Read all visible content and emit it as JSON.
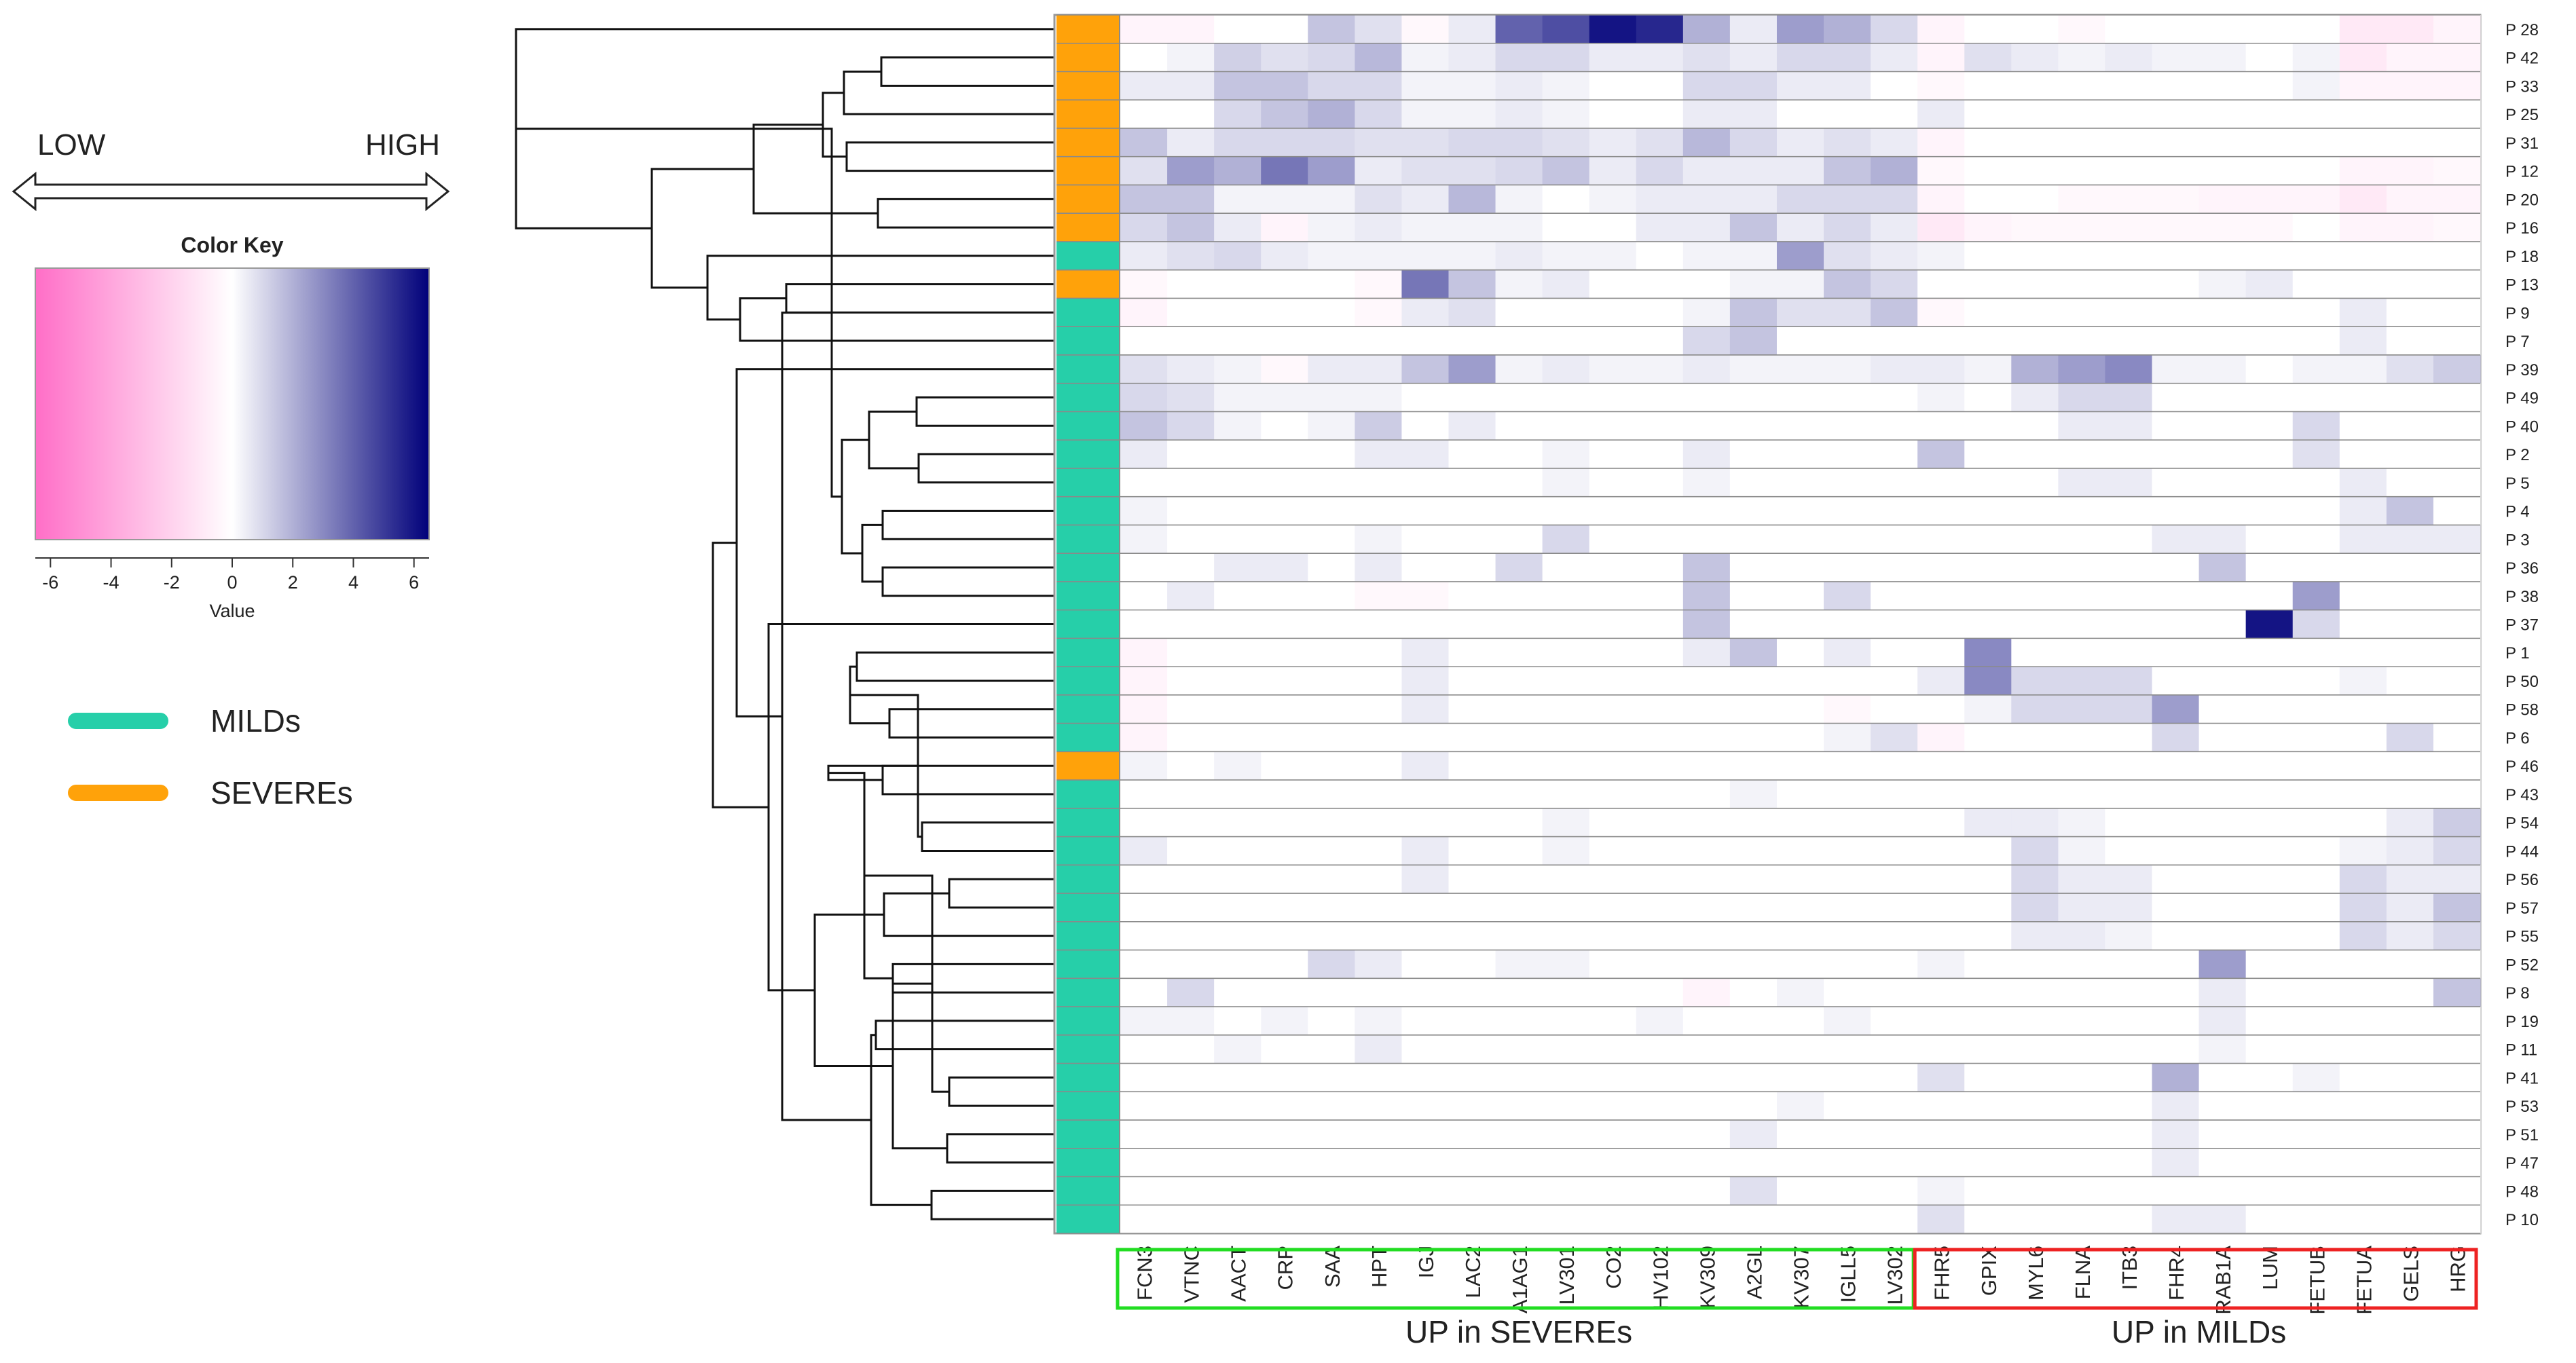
{
  "chart_data": {
    "type": "heatmap",
    "direction_labels": {
      "low": "LOW",
      "high": "HIGH"
    },
    "color_key": {
      "title": "Color Key",
      "xlabel": "Value",
      "range": [
        -6.5,
        6.5
      ],
      "ticks": [
        "-6",
        "-4",
        "-2",
        "0",
        "2",
        "4",
        "6"
      ],
      "tick_values": [
        -6,
        -4,
        -2,
        0,
        2,
        4,
        6
      ],
      "colors": {
        "low": "#ff6ec7",
        "mid": "#ffffff",
        "high": "#00007a"
      }
    },
    "legend": [
      {
        "label": "MILDs",
        "color": "#26cfa9"
      },
      {
        "label": "SEVEREs",
        "color": "#ffa20a"
      }
    ],
    "rows": [
      "P 28",
      "P 42",
      "P 33",
      "P 25",
      "P 31",
      "P 12",
      "P 20",
      "P 16",
      "P 18",
      "P 13",
      "P 9",
      "P 7",
      "P 39",
      "P 49",
      "P 40",
      "P 2",
      "P 5",
      "P 4",
      "P 3",
      "P 36",
      "P 38",
      "P 37",
      "P 1",
      "P 50",
      "P 58",
      "P 6",
      "P 46",
      "P 43",
      "P 54",
      "P 44",
      "P 56",
      "P 57",
      "P 55",
      "P 52",
      "P 8",
      "P 19",
      "P 11",
      "P 41",
      "P 53",
      "P 51",
      "P 47",
      "P 48",
      "P 10"
    ],
    "row_groups": [
      "SEVEREs",
      "SEVEREs",
      "SEVEREs",
      "SEVEREs",
      "SEVEREs",
      "SEVEREs",
      "SEVEREs",
      "SEVEREs",
      "MILDs",
      "SEVEREs",
      "MILDs",
      "MILDs",
      "MILDs",
      "MILDs",
      "MILDs",
      "MILDs",
      "MILDs",
      "MILDs",
      "MILDs",
      "MILDs",
      "MILDs",
      "MILDs",
      "MILDs",
      "MILDs",
      "MILDs",
      "MILDs",
      "SEVEREs",
      "MILDs",
      "MILDs",
      "MILDs",
      "MILDs",
      "MILDs",
      "MILDs",
      "MILDs",
      "MILDs",
      "MILDs",
      "MILDs",
      "MILDs",
      "MILDs",
      "MILDs",
      "MILDs",
      "MILDs",
      "MILDs"
    ],
    "columns": [
      "FCN3",
      "VTNC",
      "AACT",
      "CRP",
      "SAA",
      "HPT",
      "IGJ",
      "LAC2",
      "A1AG1",
      "LV301",
      "CO2",
      "HV102",
      "KV309",
      "A2GL",
      "KV307",
      "IGLL5",
      "LV302",
      "FHR5",
      "GPIX",
      "MYL6",
      "FLNA",
      "ITB3",
      "FHR4",
      "RAB1A",
      "LUM",
      "FETUB",
      "FETUA",
      "GELS",
      "HRG"
    ],
    "column_groups": [
      {
        "label": "UP in SEVEREs",
        "color": "#22dd22",
        "columns": 17
      },
      {
        "label": "UP in MILDs",
        "color": "#ee2222",
        "columns": 12
      }
    ],
    "values": [
      [
        -0.5,
        -0.5,
        0,
        0,
        1.5,
        0.8,
        -0.3,
        0.5,
        4,
        4.5,
        6,
        5.5,
        2,
        0.5,
        2.5,
        2,
        1,
        -0.5,
        0,
        0,
        -0.3,
        0,
        0,
        0,
        0,
        0,
        -1,
        -1,
        -0.5
      ],
      [
        0,
        0.3,
        1.2,
        0.8,
        1,
        1.8,
        0.3,
        0.5,
        1,
        1,
        0.5,
        0.5,
        0.8,
        0.5,
        1,
        1,
        0.5,
        -0.5,
        0.8,
        0.5,
        0.3,
        0.5,
        0.3,
        0.3,
        0,
        0.3,
        -1,
        -0.5,
        -0.5
      ],
      [
        0.5,
        0.5,
        1.5,
        1.5,
        1,
        1,
        0.3,
        0.3,
        0.5,
        0.3,
        0,
        0,
        1,
        1,
        0.5,
        0.5,
        0,
        -0.3,
        0,
        0,
        0,
        0,
        0,
        0,
        0,
        0.3,
        -0.5,
        -0.5,
        -0.5
      ],
      [
        0,
        0,
        1,
        1.5,
        2,
        1,
        0.3,
        0.3,
        0.5,
        0.3,
        0,
        0,
        0.5,
        0.5,
        0,
        0,
        0,
        0.5,
        0,
        0,
        0,
        0,
        0,
        0,
        0,
        0,
        0,
        0,
        0
      ],
      [
        1.5,
        0.5,
        1,
        1,
        1,
        0.8,
        0.8,
        1,
        1,
        0.8,
        0.5,
        0.8,
        1.8,
        1,
        0.5,
        0.8,
        0.5,
        -0.5,
        0,
        0,
        0,
        0,
        0,
        0,
        0,
        0,
        0,
        0,
        0
      ],
      [
        0.8,
        2.5,
        2,
        3.5,
        2.5,
        0.5,
        0.8,
        0.8,
        1,
        1.5,
        0.5,
        1,
        0.5,
        0.5,
        0.5,
        1.5,
        2,
        -0.3,
        0,
        0,
        0,
        0,
        0,
        0,
        0,
        0,
        -0.5,
        -0.5,
        -0.3
      ],
      [
        1.5,
        1.5,
        0.3,
        0.3,
        0.3,
        0.8,
        0.5,
        1.8,
        0.3,
        0,
        0.3,
        0.5,
        0.5,
        0.5,
        1,
        1,
        1,
        -0.5,
        0,
        0,
        -0.3,
        -0.3,
        -0.3,
        -0.5,
        -0.5,
        -0.5,
        -1,
        -0.5,
        -0.5
      ],
      [
        1,
        1.5,
        0.5,
        -0.5,
        0.3,
        0.5,
        0.3,
        0.3,
        0.3,
        0,
        0,
        0.5,
        0.5,
        1.5,
        0.5,
        1,
        0.5,
        -1,
        -0.5,
        -0.3,
        -0.3,
        -0.3,
        -0.3,
        -0.3,
        -0.3,
        0,
        -0.5,
        -0.5,
        -0.3
      ],
      [
        0.5,
        0.8,
        1,
        0.5,
        0.3,
        0.3,
        0.3,
        0.3,
        0.5,
        0.3,
        0.3,
        0,
        0.3,
        0.3,
        2.5,
        0.8,
        0.5,
        0.3,
        0,
        0,
        0,
        0,
        0,
        0,
        0,
        0,
        0,
        0,
        0
      ],
      [
        -0.3,
        0,
        0,
        0,
        0,
        -0.3,
        3.5,
        1.5,
        0.3,
        0.5,
        0,
        0,
        0,
        0.3,
        0.3,
        1.5,
        1,
        0,
        0,
        0,
        0,
        0,
        0,
        0.3,
        0.5,
        0,
        0,
        0,
        0
      ],
      [
        -0.5,
        0,
        0,
        0,
        0,
        -0.3,
        0.5,
        0.8,
        0,
        0,
        0,
        0,
        0.3,
        1.5,
        0.8,
        0.8,
        1.5,
        -0.3,
        0,
        0,
        0,
        0,
        0,
        0,
        0,
        0,
        0.5,
        0,
        0
      ],
      [
        0,
        0,
        0,
        0,
        0,
        0,
        0,
        0,
        0,
        0,
        0,
        0,
        1,
        1.5,
        0,
        0,
        0,
        0,
        0,
        0,
        0,
        0,
        0,
        0,
        0,
        0,
        0.5,
        0,
        0
      ],
      [
        0.8,
        0.5,
        0.3,
        -0.3,
        0.5,
        0.5,
        1.5,
        2.5,
        0.3,
        0.5,
        0.3,
        0.3,
        0.5,
        0.3,
        0.3,
        0.3,
        0.5,
        0.5,
        0.3,
        2,
        2.5,
        3,
        0.3,
        0.3,
        0,
        0.3,
        0.3,
        0.8,
        1.3
      ],
      [
        1,
        0.8,
        0.3,
        0.3,
        0.3,
        0.3,
        0,
        0,
        0,
        0,
        0,
        0,
        0,
        0,
        0,
        0,
        0,
        0.3,
        0,
        0.5,
        1,
        1,
        0,
        0,
        0,
        0,
        0,
        0,
        0
      ],
      [
        1.5,
        1,
        0.3,
        0,
        0.3,
        1.3,
        0,
        0.5,
        0,
        0,
        0,
        0,
        0,
        0,
        0,
        0,
        0,
        0,
        0,
        0,
        0.5,
        0.5,
        0,
        0,
        0,
        1,
        0,
        0,
        0
      ],
      [
        0.5,
        0,
        0,
        0,
        0,
        0.5,
        0.5,
        0,
        0,
        0.3,
        0,
        0,
        0.5,
        0,
        0,
        0,
        0,
        1.5,
        0,
        0,
        0,
        0,
        0,
        0,
        0,
        0.8,
        0,
        0,
        0
      ],
      [
        0,
        0,
        0,
        0,
        0,
        0,
        0,
        0,
        0,
        0.3,
        0,
        0,
        0.3,
        0,
        0,
        0,
        0,
        0,
        0,
        0,
        0.5,
        0.5,
        0,
        0,
        0,
        0,
        0.5,
        0,
        0
      ],
      [
        0.3,
        0,
        0,
        0,
        0,
        0,
        0,
        0,
        0,
        0,
        0,
        0,
        0,
        0,
        0,
        0,
        0,
        0,
        0,
        0,
        0,
        0,
        0,
        0,
        0,
        0,
        0.5,
        1.5,
        0
      ],
      [
        0.3,
        0,
        0,
        0,
        0,
        0.3,
        0,
        0,
        0,
        1,
        0,
        0,
        0,
        0,
        0,
        0,
        0,
        0,
        0,
        0,
        0,
        0,
        0.5,
        0.5,
        0,
        0,
        0.5,
        0.5,
        0.5
      ],
      [
        0,
        0,
        0.5,
        0.5,
        0,
        0.5,
        0,
        0,
        1,
        0,
        0,
        0,
        1.5,
        0,
        0,
        0,
        0,
        0,
        0,
        0,
        0,
        0,
        0,
        1.5,
        0,
        0,
        0,
        0,
        0
      ],
      [
        0,
        0.5,
        0,
        0,
        0,
        -0.3,
        -0.3,
        0,
        0,
        0,
        0,
        0,
        1.5,
        0,
        0,
        1,
        0,
        0,
        0,
        0,
        0,
        0,
        0,
        0,
        0,
        2.5,
        0,
        0,
        0
      ],
      [
        0,
        0,
        0,
        0,
        0,
        0,
        0,
        0,
        0,
        0,
        0,
        0,
        1.5,
        0,
        0,
        0,
        0,
        0,
        0,
        0,
        0,
        0,
        0,
        0,
        6,
        1,
        0,
        0,
        0
      ],
      [
        -0.5,
        0,
        0,
        0,
        0,
        0,
        0.5,
        0,
        0,
        0,
        0,
        0,
        0.5,
        1.5,
        0,
        0.5,
        0,
        0,
        3,
        0,
        0,
        0,
        0,
        0,
        0,
        0,
        0,
        0,
        0
      ],
      [
        -0.5,
        0,
        0,
        0,
        0,
        0,
        0.5,
        0,
        0,
        0,
        0,
        0,
        0,
        0,
        0,
        0,
        0,
        0.5,
        3,
        1,
        1,
        1,
        0,
        0,
        0,
        0,
        0.3,
        0,
        0
      ],
      [
        -0.5,
        0,
        0,
        0,
        0,
        0,
        0.5,
        0,
        0,
        0,
        0,
        0,
        0,
        0,
        0,
        -0.3,
        0,
        0,
        0.3,
        1,
        1,
        1,
        2.5,
        0,
        0,
        0,
        0,
        0,
        0
      ],
      [
        -0.5,
        0,
        0,
        0,
        0,
        0,
        0,
        0,
        0,
        0,
        0,
        0,
        0,
        0,
        0,
        0.3,
        0.8,
        -0.5,
        0,
        0,
        0,
        0,
        1,
        0,
        0,
        0,
        0,
        1,
        0
      ],
      [
        0.3,
        0,
        0.3,
        0,
        0,
        0,
        0.5,
        0,
        0,
        0,
        0,
        0,
        0,
        0,
        0,
        0,
        0,
        0,
        0,
        0,
        0,
        0,
        0,
        0,
        0,
        0,
        0,
        0,
        0
      ],
      [
        0,
        0,
        0,
        0,
        0,
        0,
        0,
        0,
        0,
        0,
        0,
        0,
        0,
        0.3,
        0,
        0,
        0,
        0,
        0,
        0,
        0,
        0,
        0,
        0,
        0,
        0,
        0,
        0,
        0
      ],
      [
        0,
        0,
        0,
        0,
        0,
        0,
        0,
        0,
        0,
        0.3,
        0,
        0,
        0,
        0,
        0,
        0,
        0,
        0,
        0.5,
        0.5,
        0.3,
        0,
        0,
        0,
        0,
        0,
        0,
        0.5,
        1.3
      ],
      [
        0.5,
        0,
        0,
        0,
        0,
        0,
        0.5,
        0,
        0,
        0.3,
        0,
        0,
        0,
        0,
        0,
        0,
        0,
        0,
        0,
        1,
        0.3,
        0,
        0,
        0,
        0,
        0,
        0.3,
        0.5,
        1
      ],
      [
        0,
        0,
        0,
        0,
        0,
        0,
        0.5,
        0,
        0,
        0,
        0,
        0,
        0,
        0,
        0,
        0,
        0,
        0,
        0,
        1,
        0.5,
        0.5,
        0,
        0,
        0,
        0,
        1,
        0.5,
        0.5
      ],
      [
        0,
        0,
        0,
        0,
        0,
        0,
        0,
        0,
        0,
        0,
        0,
        0,
        0,
        0,
        0,
        0,
        0,
        0,
        0,
        1,
        0.5,
        0.5,
        0,
        0,
        0,
        0,
        1,
        0.5,
        1.5
      ],
      [
        0,
        0,
        0,
        0,
        0,
        0,
        0,
        0,
        0,
        0,
        0,
        0,
        0,
        0,
        0,
        0,
        0,
        0,
        0,
        0.5,
        0.5,
        0.3,
        0,
        0,
        0,
        0,
        1,
        0.5,
        1
      ],
      [
        0,
        0,
        0,
        0,
        1,
        0.5,
        0,
        0,
        0.3,
        0.3,
        0,
        0,
        0,
        0,
        0,
        0,
        0,
        0.3,
        0,
        0,
        0,
        0,
        0,
        2.5,
        0,
        0,
        0,
        0,
        0
      ],
      [
        0,
        1,
        0,
        0,
        0,
        0,
        0,
        0,
        0,
        0,
        0,
        0,
        -0.5,
        0,
        0.3,
        0,
        0,
        0,
        0,
        0,
        0,
        0,
        0,
        0.5,
        0,
        0,
        0,
        0,
        1.5
      ],
      [
        0.3,
        0.3,
        0,
        0.3,
        0,
        0.3,
        0,
        0,
        0,
        0,
        0,
        0.3,
        0,
        0,
        0,
        0.3,
        0,
        0,
        0,
        0,
        0,
        0,
        0,
        0.5,
        0,
        0,
        0,
        0,
        0
      ],
      [
        0,
        0,
        0.3,
        0,
        0,
        0.5,
        0,
        0,
        0,
        0,
        0,
        0,
        0,
        0,
        0,
        0,
        0,
        0,
        0,
        0,
        0,
        0,
        0,
        0.3,
        0,
        0,
        0,
        0,
        0
      ],
      [
        0,
        0,
        0,
        0,
        0,
        0,
        0,
        0,
        0,
        0,
        0,
        0,
        0,
        0,
        0,
        0,
        0,
        0.8,
        0,
        0,
        0,
        0,
        2,
        0,
        0,
        0.3,
        0,
        0,
        0
      ],
      [
        0,
        0,
        0,
        0,
        0,
        0,
        0,
        0,
        0,
        0,
        0,
        0,
        0,
        0,
        0.3,
        0,
        0,
        0,
        0,
        0,
        0,
        0,
        0.5,
        0,
        0,
        0,
        0,
        0,
        0
      ],
      [
        0,
        0,
        0,
        0,
        0,
        0,
        0,
        0,
        0,
        0,
        0,
        0,
        0,
        0.5,
        0,
        0,
        0,
        0,
        0,
        0,
        0,
        0,
        0.5,
        0,
        0,
        0,
        0,
        0,
        0
      ],
      [
        0,
        0,
        0,
        0,
        0,
        0,
        0,
        0,
        0,
        0,
        0,
        0,
        0,
        0,
        0,
        0,
        0,
        0,
        0,
        0,
        0,
        0,
        0.5,
        0,
        0,
        0,
        0,
        0,
        0
      ],
      [
        0,
        0,
        0,
        0,
        0,
        0,
        0,
        0,
        0,
        0,
        0,
        0,
        0,
        0.8,
        0,
        0,
        0,
        0.3,
        0,
        0,
        0,
        0,
        0,
        0,
        0,
        0,
        0,
        0,
        0
      ],
      [
        0,
        0,
        0,
        0,
        0,
        0,
        0,
        0,
        0,
        0,
        0,
        0,
        0,
        0,
        0,
        0,
        0,
        0.8,
        0,
        0,
        0,
        0,
        0.5,
        0.5,
        0,
        0,
        0,
        0,
        0
      ]
    ]
  }
}
